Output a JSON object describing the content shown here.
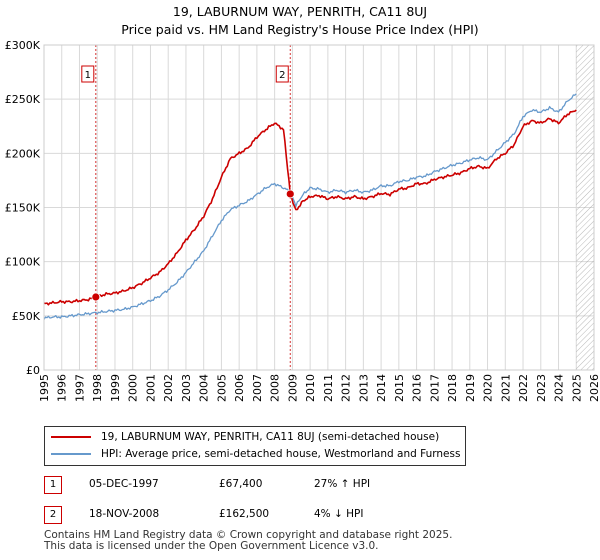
{
  "title_line1": "19, LABURNUM WAY, PENRITH, CA11 8UJ",
  "title_line2": "Price paid vs. HM Land Registry's House Price Index (HPI)",
  "colors": {
    "property": "#cc0000",
    "hpi": "#6699cc",
    "marker_line": "#cc0000",
    "future_hatch": "#999999"
  },
  "chart_data": {
    "type": "line",
    "title": "19, LABURNUM WAY, PENRITH, CA11 8UJ — Price paid vs. HM Land Registry's House Price Index (HPI)",
    "xlabel": "",
    "ylabel": "",
    "xlim": [
      1995,
      2026
    ],
    "ylim": [
      0,
      300000
    ],
    "x_ticks": [
      "1995",
      "1996",
      "1997",
      "1998",
      "1999",
      "2000",
      "2001",
      "2002",
      "2003",
      "2004",
      "2005",
      "2006",
      "2007",
      "2008",
      "2009",
      "2010",
      "2011",
      "2012",
      "2013",
      "2014",
      "2015",
      "2016",
      "2017",
      "2018",
      "2019",
      "2020",
      "2021",
      "2022",
      "2023",
      "2024",
      "2025",
      "2026"
    ],
    "y_ticks": [
      {
        "value": 0,
        "label": "£0"
      },
      {
        "value": 50000,
        "label": "£50K"
      },
      {
        "value": 100000,
        "label": "£100K"
      },
      {
        "value": 150000,
        "label": "£150K"
      },
      {
        "value": 200000,
        "label": "£200K"
      },
      {
        "value": 250000,
        "label": "£250K"
      },
      {
        "value": 300000,
        "label": "£300K"
      }
    ],
    "grid": true,
    "series": [
      {
        "name": "19, LABURNUM WAY, PENRITH, CA11 8UJ (semi-detached house)",
        "color": "#cc0000",
        "x": [
          1995.0,
          1995.5,
          1996.0,
          1996.5,
          1997.0,
          1997.5,
          1997.92,
          1998.5,
          1999.0,
          1999.5,
          2000.0,
          2000.5,
          2001.0,
          2001.5,
          2002.0,
          2002.5,
          2003.0,
          2003.5,
          2004.0,
          2004.5,
          2005.0,
          2005.5,
          2006.0,
          2006.5,
          2007.0,
          2007.5,
          2008.0,
          2008.5,
          2008.88,
          2009.2,
          2009.6,
          2010.0,
          2010.5,
          2011.0,
          2011.5,
          2012.0,
          2012.5,
          2013.0,
          2013.5,
          2014.0,
          2014.5,
          2015.0,
          2015.5,
          2016.0,
          2016.5,
          2017.0,
          2017.5,
          2018.0,
          2018.5,
          2019.0,
          2019.5,
          2020.0,
          2020.5,
          2021.0,
          2021.5,
          2022.0,
          2022.5,
          2023.0,
          2023.5,
          2024.0,
          2024.5,
          2025.0
        ],
        "values": [
          61000,
          62000,
          63000,
          63000,
          64000,
          65000,
          67400,
          70000,
          71000,
          73000,
          76000,
          80000,
          85000,
          90000,
          98000,
          108000,
          120000,
          130000,
          142000,
          158000,
          178000,
          195000,
          200000,
          205000,
          215000,
          222000,
          228000,
          222000,
          162500,
          147000,
          156000,
          160000,
          161000,
          158000,
          160000,
          158000,
          160000,
          158000,
          160000,
          163000,
          162000,
          167000,
          168000,
          172000,
          172000,
          176000,
          178000,
          180000,
          182000,
          186000,
          188000,
          186000,
          195000,
          200000,
          208000,
          225000,
          230000,
          228000,
          232000,
          228000,
          236000,
          240000
        ]
      },
      {
        "name": "HPI: Average price, semi-detached house, Westmorland and Furness",
        "color": "#6699cc",
        "x": [
          1995.0,
          1995.5,
          1996.0,
          1996.5,
          1997.0,
          1997.5,
          1998.0,
          1998.5,
          1999.0,
          1999.5,
          2000.0,
          2000.5,
          2001.0,
          2001.5,
          2002.0,
          2002.5,
          2003.0,
          2003.5,
          2004.0,
          2004.5,
          2005.0,
          2005.5,
          2006.0,
          2006.5,
          2007.0,
          2007.5,
          2008.0,
          2008.5,
          2008.88,
          2009.2,
          2009.6,
          2010.0,
          2010.5,
          2011.0,
          2011.5,
          2012.0,
          2012.5,
          2013.0,
          2013.5,
          2014.0,
          2014.5,
          2015.0,
          2015.5,
          2016.0,
          2016.5,
          2017.0,
          2017.5,
          2018.0,
          2018.5,
          2019.0,
          2019.5,
          2020.0,
          2020.5,
          2021.0,
          2021.5,
          2022.0,
          2022.5,
          2023.0,
          2023.5,
          2024.0,
          2024.5,
          2025.0
        ],
        "values": [
          48000,
          49000,
          49000,
          50000,
          51000,
          52000,
          53000,
          54000,
          55000,
          56000,
          58000,
          61000,
          64000,
          68000,
          74000,
          81000,
          90000,
          100000,
          110000,
          124000,
          138000,
          148000,
          152000,
          156000,
          162000,
          168000,
          172000,
          168000,
          165000,
          152000,
          162000,
          168000,
          167000,
          164000,
          166000,
          164000,
          166000,
          164000,
          166000,
          170000,
          170000,
          174000,
          175000,
          178000,
          179000,
          183000,
          186000,
          189000,
          191000,
          194000,
          196000,
          194000,
          202000,
          210000,
          218000,
          234000,
          240000,
          238000,
          242000,
          238000,
          248000,
          255000
        ]
      }
    ],
    "sales": [
      {
        "id": "1",
        "x": 1997.92,
        "value": 67400
      },
      {
        "id": "2",
        "x": 2008.88,
        "value": 162500
      }
    ],
    "future_from": 2025.0
  },
  "legend": {
    "property_label": "19, LABURNUM WAY, PENRITH, CA11 8UJ (semi-detached house)",
    "hpi_label": "HPI: Average price, semi-detached house, Westmorland and Furness"
  },
  "transactions": [
    {
      "id": "1",
      "date": "05-DEC-1997",
      "price": "£67,400",
      "hpi_change": "27% ↑ HPI"
    },
    {
      "id": "2",
      "date": "18-NOV-2008",
      "price": "£162,500",
      "hpi_change": "4% ↓ HPI"
    }
  ],
  "footer": {
    "line1": "Contains HM Land Registry data © Crown copyright and database right 2025.",
    "line2": "This data is licensed under the Open Government Licence v3.0."
  }
}
